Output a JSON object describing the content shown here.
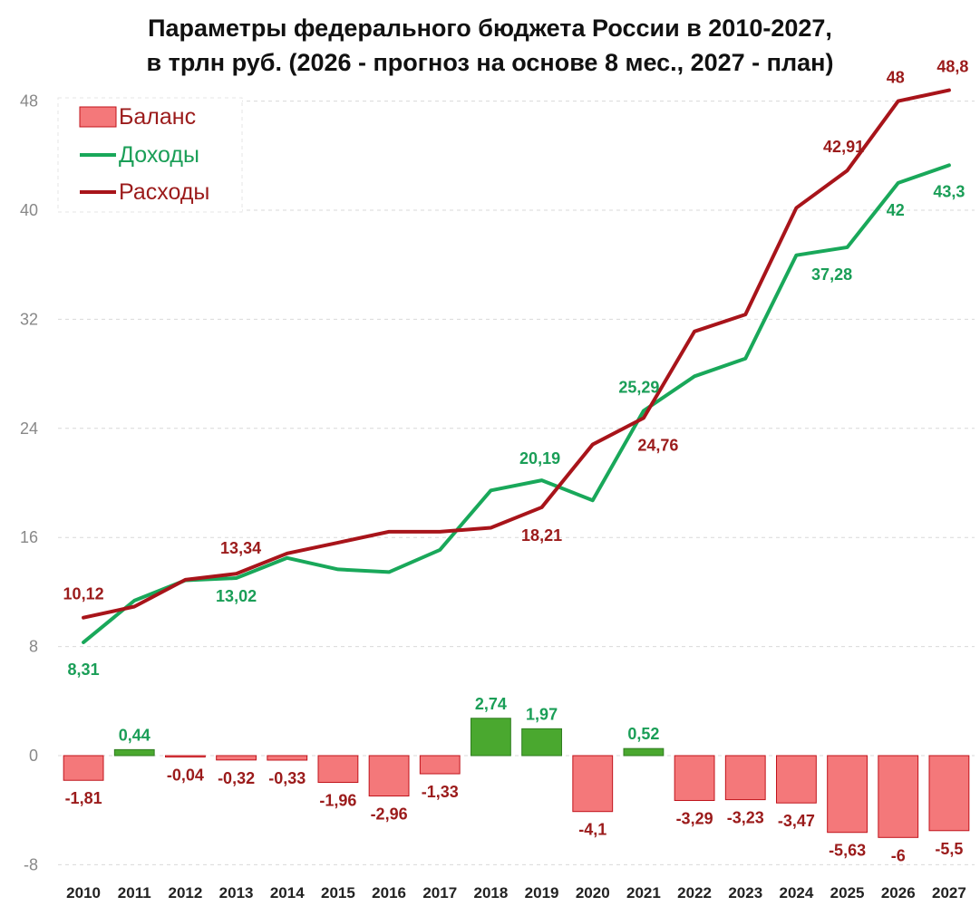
{
  "title_line1": "Параметры федерального бюджета России в 2010-2027,",
  "title_line2": "в трлн руб. (2026 - прогноз на основе 8 мес., 2027 - план)",
  "colors": {
    "balance_neg": "#f4787a",
    "balance_neg_stroke": "#c0131b",
    "balance_pos": "#4aa82f",
    "balance_pos_stroke": "#2e7d1f",
    "income": "#19a85a",
    "expense": "#a8141a",
    "label_neg": "#9b1b1b",
    "label_pos": "#1a9e57"
  },
  "chart_data": {
    "type": "bar+line",
    "categories": [
      "2010",
      "2011",
      "2012",
      "2013",
      "2014",
      "2015",
      "2016",
      "2017",
      "2018",
      "2019",
      "2020",
      "2021",
      "2022",
      "2023",
      "2024",
      "2025",
      "2026",
      "2027"
    ],
    "ylim": [
      -8,
      50
    ],
    "yticks": [
      -8,
      0,
      8,
      16,
      24,
      32,
      40,
      48
    ],
    "grid": true,
    "legend_position": "top-left",
    "series": [
      {
        "name": "Баланс",
        "kind": "bar",
        "values": [
          -1.81,
          0.44,
          -0.04,
          -0.32,
          -0.33,
          -1.96,
          -2.96,
          -1.33,
          2.74,
          1.97,
          -4.1,
          0.52,
          -3.29,
          -3.23,
          -3.47,
          -5.63,
          -6,
          -5.5
        ],
        "labels": [
          "-1,81",
          "0,44",
          "-0,04",
          "-0,32",
          "-0,33",
          "-1,96",
          "-2,96",
          "-1,33",
          "2,74",
          "1,97",
          "-4,1",
          "0,52",
          "-3,29",
          "-3,23",
          "-3,47",
          "-5,63",
          "-6",
          "-5,5"
        ]
      },
      {
        "name": "Доходы",
        "kind": "line",
        "values": [
          8.31,
          11.37,
          12.86,
          13.02,
          14.5,
          13.66,
          13.46,
          15.09,
          19.45,
          20.19,
          18.72,
          25.29,
          27.82,
          29.12,
          36.7,
          37.28,
          42,
          43.3
        ],
        "labels": {
          "0": "8,31",
          "3": "13,02",
          "9": "20,19",
          "11": "25,29",
          "15": "37,28",
          "16": "42",
          "17": "43,3"
        }
      },
      {
        "name": "Расходы",
        "kind": "line",
        "values": [
          10.12,
          10.93,
          12.9,
          13.34,
          14.83,
          15.62,
          16.42,
          16.42,
          16.71,
          18.21,
          22.82,
          24.76,
          31.11,
          32.35,
          40.17,
          42.91,
          48,
          48.8
        ],
        "labels": {
          "0": "10,12",
          "3": "13,34",
          "9": "18,21",
          "11": "24,76",
          "15": "42,91",
          "16": "48",
          "17": "48,8"
        }
      }
    ]
  }
}
